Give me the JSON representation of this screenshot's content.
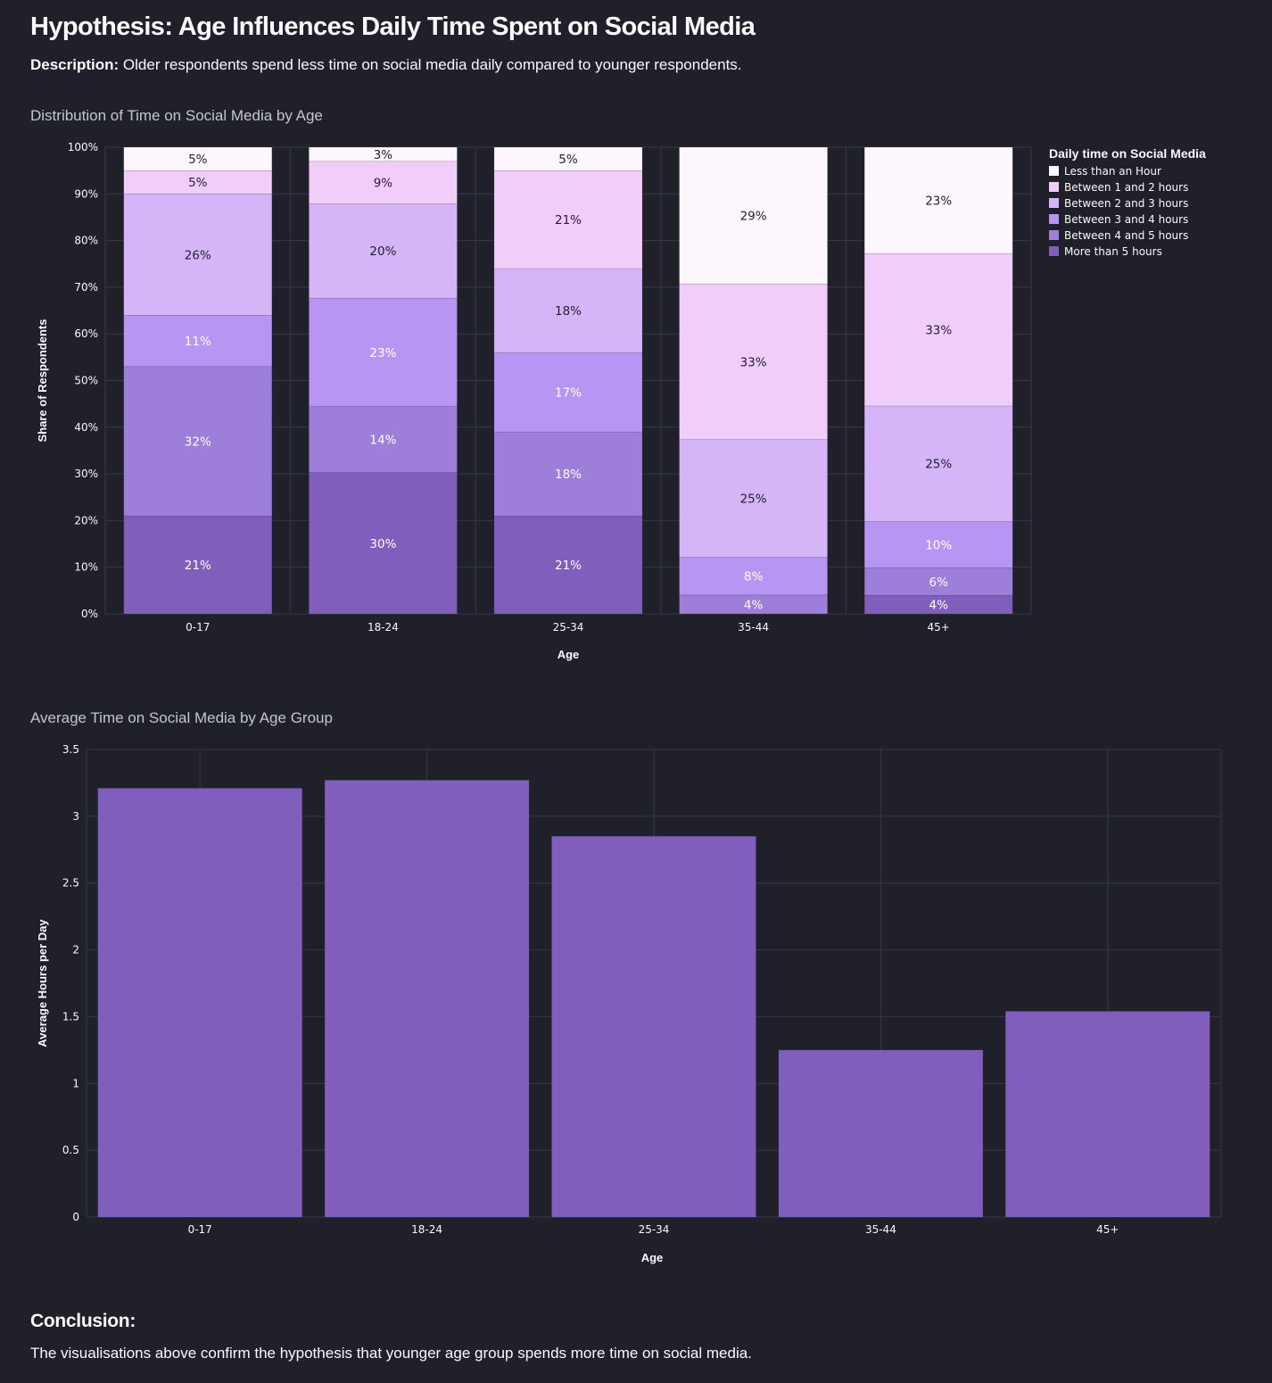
{
  "page": {
    "title": "Hypothesis: Age Influences Daily Time Spent on Social Media",
    "description_label": "Description:",
    "description_text": " Older respondents spend less time on social media daily compared to younger respondents.",
    "conclusion_title": "Conclusion:",
    "conclusion_text": "The visualisations above confirm the hypothesis that younger age group spends more time on social media."
  },
  "colors": {
    "background": "#1f2029",
    "grid": "#363844",
    "text": "#fafafa",
    "bar": "#7f5fbb"
  },
  "chart_data": [
    {
      "type": "bar",
      "stacked": true,
      "normalized": true,
      "title": "Distribution of Time on Social Media by Age",
      "xlabel": "Age",
      "ylabel": "Share of Respondents",
      "ylim": [
        0,
        1
      ],
      "yticks": [
        "0%",
        "10%",
        "20%",
        "30%",
        "40%",
        "50%",
        "60%",
        "70%",
        "80%",
        "90%",
        "100%"
      ],
      "categories": [
        "0-17",
        "18-24",
        "25-34",
        "35-44",
        "45+"
      ],
      "legend": {
        "title": "Daily time on Social Media",
        "position": "right"
      },
      "grid": true,
      "series": [
        {
          "name": "More than 5 hours",
          "color": "#7f5fbb",
          "values": [
            21,
            30,
            21,
            0,
            4
          ],
          "labels": [
            "21%",
            "30%",
            "21%",
            "",
            "4%"
          ]
        },
        {
          "name": "Between 4 and 5 hours",
          "color": "#9d7ed9",
          "values": [
            32,
            14,
            18,
            4,
            6
          ],
          "labels": [
            "32%",
            "14%",
            "18%",
            "4%",
            "6%"
          ]
        },
        {
          "name": "Between 3 and 4 hours",
          "color": "#b795f3",
          "values": [
            11,
            23,
            17,
            8,
            10
          ],
          "labels": [
            "11%",
            "23%",
            "17%",
            "8%",
            "10%"
          ]
        },
        {
          "name": "Between 2 and 3 hours",
          "color": "#d5b5f8",
          "values": [
            26,
            20,
            18,
            25,
            25
          ],
          "labels": [
            "26%",
            "20%",
            "18%",
            "25%",
            "25%"
          ]
        },
        {
          "name": "Between 1 and 2 hours",
          "color": "#f1cdfa",
          "values": [
            5,
            9,
            21,
            33,
            33
          ],
          "labels": [
            "5%",
            "9%",
            "21%",
            "33%",
            "33%"
          ]
        },
        {
          "name": "Less than an Hour",
          "color": "#fdf6fd",
          "values": [
            5,
            3,
            5,
            29,
            23
          ],
          "labels": [
            "5%",
            "3%",
            "5%",
            "29%",
            "23%"
          ]
        }
      ]
    },
    {
      "type": "bar",
      "title": "Average Time on Social Media by Age Group",
      "xlabel": "Age",
      "ylabel": "Average Hours per Day",
      "ylim": [
        0,
        3.5
      ],
      "yticks": [
        "0",
        "0.5",
        "1",
        "1.5",
        "2",
        "2.5",
        "3",
        "3.5"
      ],
      "categories": [
        "0-17",
        "18-24",
        "25-34",
        "35-44",
        "45+"
      ],
      "values": [
        3.21,
        3.27,
        2.85,
        1.25,
        1.54
      ],
      "grid": true
    }
  ]
}
